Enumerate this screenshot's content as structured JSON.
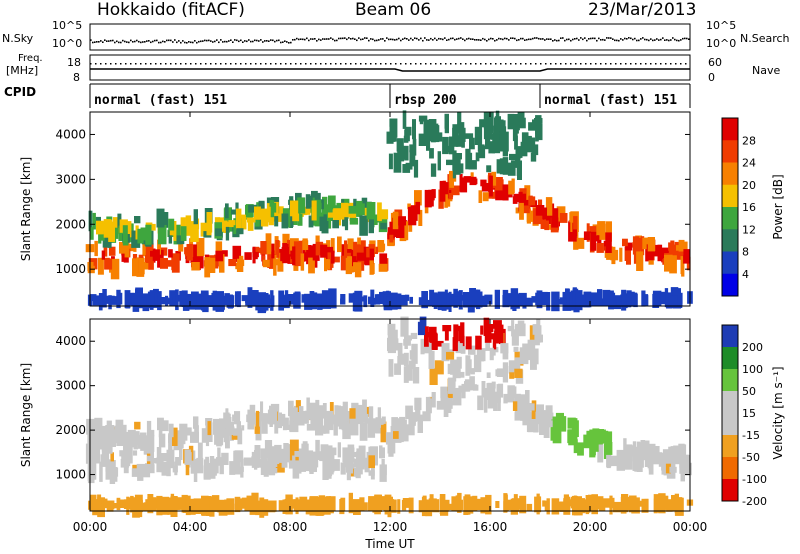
{
  "header": {
    "title": "Hokkaido (fitACF)",
    "beam": "Beam 06",
    "date": "23/Mar/2013"
  },
  "aux": {
    "nsky_label": "N.Sky",
    "nsearch_label": "N.Search",
    "nsky_ticks": [
      "10^5",
      "10^0"
    ],
    "nsearch_ticks": [
      "10^5",
      "10^0"
    ],
    "freq_label_line1": "Freq.",
    "freq_label_line2": "[MHz]",
    "freq_ticks": [
      "18",
      "8"
    ],
    "nave_label": "Nave",
    "nave_ticks": [
      "60",
      "0"
    ],
    "cpid_label": "CPID",
    "cpid_segments": [
      {
        "label": "normal (fast) 151",
        "start": 0,
        "end": 12
      },
      {
        "label": "rbsp 200",
        "start": 12,
        "end": 18
      },
      {
        "label": "normal (fast) 151",
        "start": 18,
        "end": 24
      }
    ]
  },
  "chart_data": [
    {
      "type": "heatmap",
      "name": "power",
      "ylabel": "Slant Range [km]",
      "xlim": [
        0,
        24
      ],
      "ylim": [
        180,
        4500
      ],
      "y_ticks": [
        1000,
        2000,
        3000,
        4000
      ],
      "colorbar": {
        "label": "Power [dB]",
        "ticks": [
          "28",
          "24",
          "20",
          "16",
          "12",
          "8",
          "4"
        ],
        "colors": [
          "#e00000",
          "#f03c00",
          "#f78000",
          "#f5c000",
          "#3ea63e",
          "#2a7a5a",
          "#1a3fbe",
          "#0000e6"
        ]
      },
      "echo_bands_range_km": [
        {
          "t": [
            0,
            4,
            8,
            10,
            11.8
          ],
          "center": [
            1250,
            1280,
            1350,
            1300,
            1250
          ],
          "color": "strong"
        },
        {
          "t": [
            0,
            4,
            8,
            11.8
          ],
          "center": [
            1900,
            1900,
            2300,
            2200
          ],
          "color": "medium"
        },
        {
          "t": [
            12,
            13,
            14,
            15,
            16,
            17,
            18
          ],
          "center": [
            1800,
            2300,
            2700,
            2950,
            2800,
            2600,
            2300
          ],
          "color": "strong"
        },
        {
          "t": [
            18,
            20,
            22,
            24
          ],
          "center": [
            2300,
            1700,
            1400,
            1250
          ],
          "color": "strong"
        }
      ]
    },
    {
      "type": "heatmap",
      "name": "velocity",
      "ylabel": "Slant Range [km]",
      "xlabel": "Time UT",
      "xlim": [
        0,
        24
      ],
      "ylim": [
        180,
        4500
      ],
      "y_ticks": [
        1000,
        2000,
        3000,
        4000
      ],
      "x_tick_labels": [
        "00:00",
        "04:00",
        "08:00",
        "12:00",
        "16:00",
        "20:00",
        "00:00"
      ],
      "colorbar": {
        "label": "Velocity [m s⁻¹]",
        "ticks": [
          "200",
          "100",
          "50",
          "15",
          "-15",
          "-50",
          "-100",
          "-200"
        ],
        "colors": [
          "#1e3cb4",
          "#1e8c28",
          "#66c43c",
          "#c8c8c8",
          "#c8c8c8",
          "#f0a020",
          "#f06a00",
          "#e00000"
        ]
      }
    }
  ]
}
